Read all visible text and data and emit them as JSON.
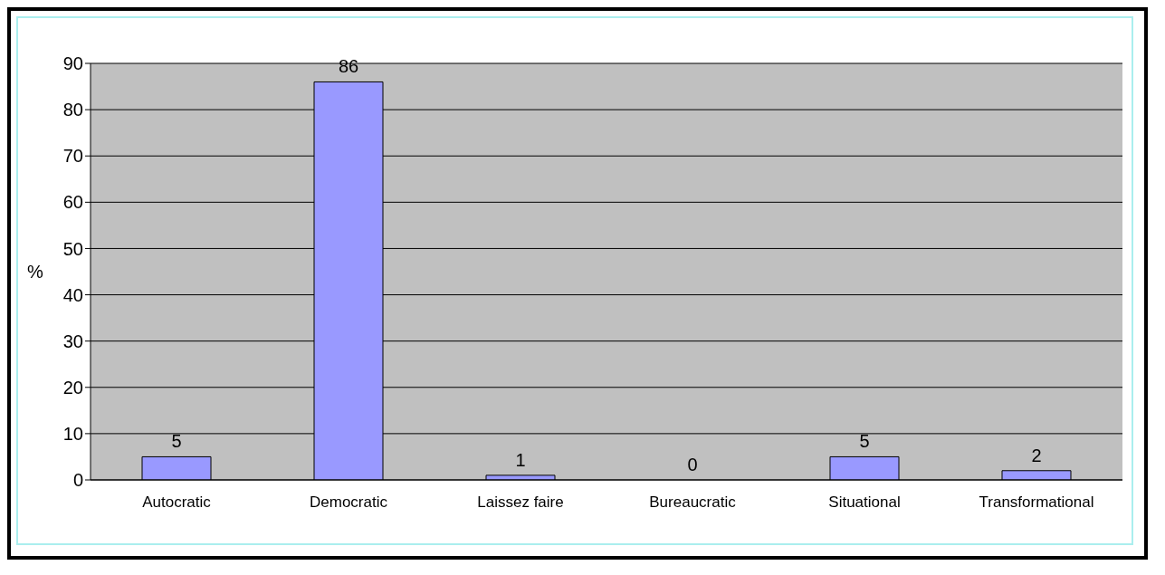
{
  "chart_data": {
    "type": "bar",
    "ylabel": "%",
    "categories": [
      "Autocratic",
      "Democratic",
      "Laissez faire",
      "Bureaucratic",
      "Situational",
      "Transformational"
    ],
    "values": [
      5,
      86,
      1,
      0,
      5,
      2
    ],
    "color": "#9999ff",
    "ylim": [
      0,
      90
    ],
    "yticks": [
      0,
      10,
      20,
      30,
      40,
      50,
      60,
      70,
      80,
      90
    ],
    "grid": "y",
    "data_labels": true
  }
}
